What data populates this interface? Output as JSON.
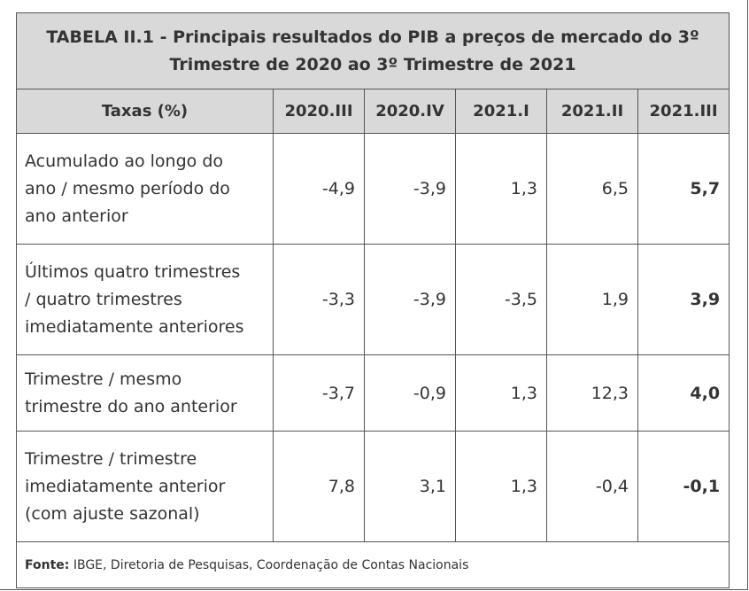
{
  "table": {
    "title_line1": "TABELA II.1 - Principais resultados do PIB a preços de mercado do 3º",
    "title_line2": "Trimestre de 2020 ao 3º Trimestre de 2021",
    "header_label": "Taxas (%)",
    "periods": [
      "2020.III",
      "2020.IV",
      "2021.I",
      "2021.II",
      "2021.III"
    ],
    "rows": [
      {
        "label_lines": [
          "Acumulado ao longo do",
          "ano / mesmo período do",
          "ano anterior"
        ],
        "values": [
          "-4,9",
          "-3,9",
          "1,3",
          "6,5",
          "5,7"
        ]
      },
      {
        "label_lines": [
          "Últimos quatro trimestres",
          "/ quatro trimestres",
          "imediatamente anteriores"
        ],
        "values": [
          "-3,3",
          "-3,9",
          "-3,5",
          "1,9",
          "3,9"
        ]
      },
      {
        "label_lines": [
          "Trimestre / mesmo",
          "trimestre do ano anterior"
        ],
        "values": [
          "-3,7",
          "-0,9",
          "1,3",
          "12,3",
          "4,0"
        ]
      },
      {
        "label_lines": [
          "Trimestre / trimestre",
          "imediatamente anterior",
          "(com ajuste sazonal)"
        ],
        "values": [
          "7,8",
          "3,1",
          "1,3",
          "-0,4",
          "-0,1"
        ]
      }
    ],
    "source_label": "Fonte:",
    "source_text": " IBGE, Diretoria de Pesquisas, Coordenação de Contas Nacionais"
  }
}
